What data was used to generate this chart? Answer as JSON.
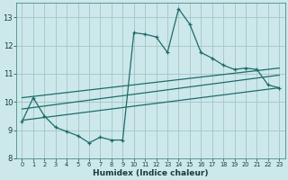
{
  "bg_color": "#cce8ea",
  "grid_color": "#aac8cc",
  "line_color": "#1e6b6b",
  "xlabel": "Humidex (Indice chaleur)",
  "ylim": [
    8,
    13.5
  ],
  "xlim": [
    -0.5,
    23.5
  ],
  "yticks": [
    8,
    9,
    10,
    11,
    12,
    13
  ],
  "xticks": [
    0,
    1,
    2,
    3,
    4,
    5,
    6,
    7,
    8,
    9,
    10,
    11,
    12,
    13,
    14,
    15,
    16,
    17,
    18,
    19,
    20,
    21,
    22,
    23
  ],
  "series1_x": [
    0,
    1,
    2,
    3,
    4,
    5,
    6,
    7,
    8,
    9,
    10,
    11,
    12,
    13,
    14,
    15,
    16,
    17,
    18,
    19,
    20,
    21,
    22,
    23
  ],
  "series1_y": [
    9.3,
    10.15,
    9.5,
    9.1,
    8.95,
    8.8,
    8.55,
    8.75,
    8.65,
    8.65,
    12.45,
    12.4,
    12.3,
    11.75,
    13.3,
    12.75,
    11.75,
    11.55,
    11.3,
    11.15,
    11.2,
    11.15,
    10.6,
    10.5
  ],
  "line2_x": [
    0,
    23
  ],
  "line2_y": [
    9.35,
    10.5
  ],
  "line3_x": [
    0,
    23
  ],
  "line3_y": [
    9.75,
    10.95
  ],
  "line4_x": [
    0,
    23
  ],
  "line4_y": [
    10.15,
    11.2
  ]
}
